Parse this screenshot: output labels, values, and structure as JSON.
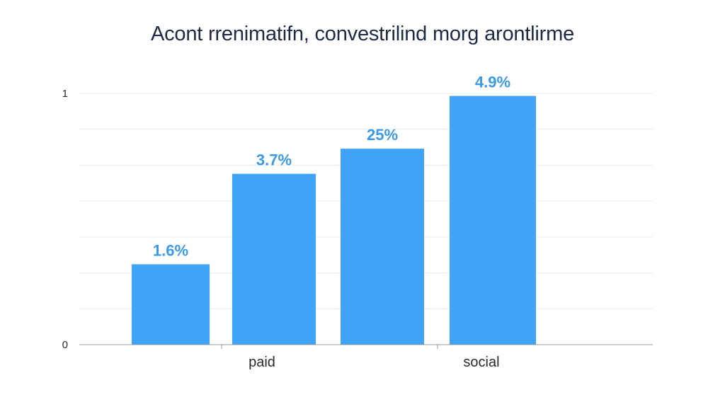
{
  "chart_data": {
    "type": "bar",
    "title": "Acont rrenimatifn, convestrilind morg arontlirme",
    "categories": [
      "",
      "paid",
      "",
      "social"
    ],
    "values": [
      0.32,
      0.68,
      0.78,
      0.99
    ],
    "data_labels": [
      "1.6%",
      "3.7%",
      "25%",
      "4.9%"
    ],
    "y_ticks": [
      {
        "value": 0,
        "label": "0"
      },
      {
        "value": 1,
        "label": "1"
      }
    ],
    "ylim": [
      0,
      1
    ],
    "grid": true,
    "bar_color": "#3fa3f7",
    "label_color": "#3a9ae6"
  }
}
